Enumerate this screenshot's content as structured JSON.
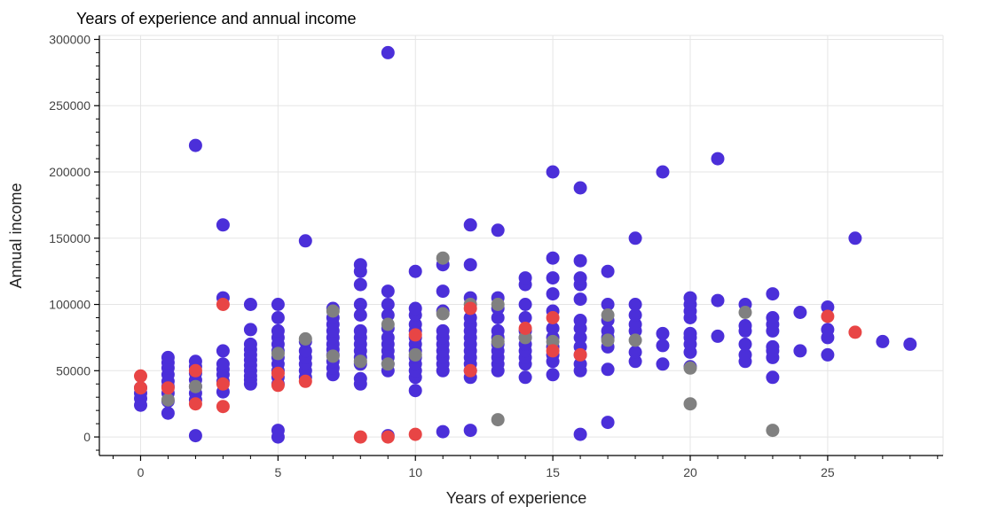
{
  "chart_data": {
    "type": "scatter",
    "title": "Years of experience and annual income",
    "xlabel": "Years of experience",
    "ylabel": "Annual income",
    "xlim": [
      -1.5,
      29.2
    ],
    "ylim": [
      -14000,
      303000
    ],
    "x_ticks": [
      0,
      5,
      10,
      15,
      20,
      25
    ],
    "y_ticks": [
      0,
      50000,
      100000,
      150000,
      200000,
      250000,
      300000
    ],
    "grid": true,
    "legend": "none",
    "series": [
      {
        "color": "#4b2fd9",
        "points": [
          [
            0,
            24000
          ],
          [
            0,
            29000
          ],
          [
            0,
            33000
          ],
          [
            0,
            37000
          ],
          [
            1,
            18000
          ],
          [
            1,
            27000
          ],
          [
            1,
            33000
          ],
          [
            1,
            38000
          ],
          [
            1,
            42000
          ],
          [
            1,
            47000
          ],
          [
            1,
            52000
          ],
          [
            1,
            56000
          ],
          [
            1,
            60000
          ],
          [
            2,
            1000
          ],
          [
            2,
            28000
          ],
          [
            2,
            33000
          ],
          [
            2,
            38000
          ],
          [
            2,
            43000
          ],
          [
            2,
            48000
          ],
          [
            2,
            53000
          ],
          [
            2,
            57000
          ],
          [
            2,
            220000
          ],
          [
            3,
            34000
          ],
          [
            3,
            42000
          ],
          [
            3,
            47000
          ],
          [
            3,
            51000
          ],
          [
            3,
            55000
          ],
          [
            3,
            65000
          ],
          [
            3,
            105000
          ],
          [
            3,
            160000
          ],
          [
            4,
            40000
          ],
          [
            4,
            43000
          ],
          [
            4,
            46000
          ],
          [
            4,
            50000
          ],
          [
            4,
            54000
          ],
          [
            4,
            58000
          ],
          [
            4,
            62000
          ],
          [
            4,
            66000
          ],
          [
            4,
            70000
          ],
          [
            4,
            81000
          ],
          [
            4,
            100000
          ],
          [
            5,
            0
          ],
          [
            5,
            5000
          ],
          [
            5,
            40000
          ],
          [
            5,
            45000
          ],
          [
            5,
            50000
          ],
          [
            5,
            55000
          ],
          [
            5,
            60000
          ],
          [
            5,
            65000
          ],
          [
            5,
            70000
          ],
          [
            5,
            75000
          ],
          [
            5,
            80000
          ],
          [
            5,
            90000
          ],
          [
            5,
            100000
          ],
          [
            6,
            45000
          ],
          [
            6,
            50000
          ],
          [
            6,
            55000
          ],
          [
            6,
            60000
          ],
          [
            6,
            65000
          ],
          [
            6,
            72000
          ],
          [
            6,
            148000
          ],
          [
            7,
            47000
          ],
          [
            7,
            52000
          ],
          [
            7,
            57000
          ],
          [
            7,
            62000
          ],
          [
            7,
            66000
          ],
          [
            7,
            70000
          ],
          [
            7,
            75000
          ],
          [
            7,
            80000
          ],
          [
            7,
            85000
          ],
          [
            7,
            90000
          ],
          [
            7,
            97000
          ],
          [
            8,
            40000
          ],
          [
            8,
            44000
          ],
          [
            8,
            55000
          ],
          [
            8,
            60000
          ],
          [
            8,
            65000
          ],
          [
            8,
            70000
          ],
          [
            8,
            75000
          ],
          [
            8,
            80000
          ],
          [
            8,
            92000
          ],
          [
            8,
            100000
          ],
          [
            8,
            115000
          ],
          [
            8,
            125000
          ],
          [
            8,
            130000
          ],
          [
            9,
            1000
          ],
          [
            9,
            50000
          ],
          [
            9,
            55000
          ],
          [
            9,
            60000
          ],
          [
            9,
            65000
          ],
          [
            9,
            70000
          ],
          [
            9,
            75000
          ],
          [
            9,
            82000
          ],
          [
            9,
            92000
          ],
          [
            9,
            100000
          ],
          [
            9,
            110000
          ],
          [
            9,
            290000
          ],
          [
            10,
            35000
          ],
          [
            10,
            45000
          ],
          [
            10,
            50000
          ],
          [
            10,
            55000
          ],
          [
            10,
            60000
          ],
          [
            10,
            65000
          ],
          [
            10,
            70000
          ],
          [
            10,
            75000
          ],
          [
            10,
            80000
          ],
          [
            10,
            85000
          ],
          [
            10,
            92000
          ],
          [
            10,
            97000
          ],
          [
            10,
            125000
          ],
          [
            11,
            4000
          ],
          [
            11,
            50000
          ],
          [
            11,
            55000
          ],
          [
            11,
            60000
          ],
          [
            11,
            65000
          ],
          [
            11,
            70000
          ],
          [
            11,
            75000
          ],
          [
            11,
            80000
          ],
          [
            11,
            95000
          ],
          [
            11,
            110000
          ],
          [
            11,
            130000
          ],
          [
            12,
            5000
          ],
          [
            12,
            45000
          ],
          [
            12,
            50000
          ],
          [
            12,
            55000
          ],
          [
            12,
            60000
          ],
          [
            12,
            65000
          ],
          [
            12,
            70000
          ],
          [
            12,
            75000
          ],
          [
            12,
            80000
          ],
          [
            12,
            85000
          ],
          [
            12,
            90000
          ],
          [
            12,
            105000
          ],
          [
            12,
            130000
          ],
          [
            12,
            160000
          ],
          [
            13,
            50000
          ],
          [
            13,
            55000
          ],
          [
            13,
            60000
          ],
          [
            13,
            65000
          ],
          [
            13,
            70000
          ],
          [
            13,
            75000
          ],
          [
            13,
            80000
          ],
          [
            13,
            90000
          ],
          [
            13,
            97000
          ],
          [
            13,
            105000
          ],
          [
            13,
            156000
          ],
          [
            14,
            45000
          ],
          [
            14,
            55000
          ],
          [
            14,
            60000
          ],
          [
            14,
            65000
          ],
          [
            14,
            70000
          ],
          [
            14,
            75000
          ],
          [
            14,
            80000
          ],
          [
            14,
            90000
          ],
          [
            14,
            100000
          ],
          [
            14,
            115000
          ],
          [
            14,
            120000
          ],
          [
            15,
            47000
          ],
          [
            15,
            57000
          ],
          [
            15,
            62000
          ],
          [
            15,
            68000
          ],
          [
            15,
            75000
          ],
          [
            15,
            82000
          ],
          [
            15,
            95000
          ],
          [
            15,
            108000
          ],
          [
            15,
            120000
          ],
          [
            15,
            135000
          ],
          [
            15,
            200000
          ],
          [
            16,
            2000
          ],
          [
            16,
            50000
          ],
          [
            16,
            55000
          ],
          [
            16,
            62000
          ],
          [
            16,
            68000
          ],
          [
            16,
            75000
          ],
          [
            16,
            82000
          ],
          [
            16,
            88000
          ],
          [
            16,
            104000
          ],
          [
            16,
            115000
          ],
          [
            16,
            120000
          ],
          [
            16,
            133000
          ],
          [
            16,
            188000
          ],
          [
            17,
            11000
          ],
          [
            17,
            51000
          ],
          [
            17,
            68000
          ],
          [
            17,
            75000
          ],
          [
            17,
            80000
          ],
          [
            17,
            88000
          ],
          [
            17,
            100000
          ],
          [
            17,
            125000
          ],
          [
            18,
            57000
          ],
          [
            18,
            64000
          ],
          [
            18,
            80000
          ],
          [
            18,
            85000
          ],
          [
            18,
            92000
          ],
          [
            18,
            100000
          ],
          [
            18,
            150000
          ],
          [
            19,
            55000
          ],
          [
            19,
            69000
          ],
          [
            19,
            78000
          ],
          [
            19,
            200000
          ],
          [
            20,
            53000
          ],
          [
            20,
            64000
          ],
          [
            20,
            70000
          ],
          [
            20,
            75000
          ],
          [
            20,
            78000
          ],
          [
            20,
            90000
          ],
          [
            20,
            95000
          ],
          [
            20,
            100000
          ],
          [
            20,
            105000
          ],
          [
            21,
            76000
          ],
          [
            21,
            103000
          ],
          [
            21,
            210000
          ],
          [
            22,
            57000
          ],
          [
            22,
            62000
          ],
          [
            22,
            70000
          ],
          [
            22,
            80000
          ],
          [
            22,
            84000
          ],
          [
            22,
            100000
          ],
          [
            23,
            45000
          ],
          [
            23,
            60000
          ],
          [
            23,
            65000
          ],
          [
            23,
            68000
          ],
          [
            23,
            80000
          ],
          [
            23,
            85000
          ],
          [
            23,
            90000
          ],
          [
            23,
            108000
          ],
          [
            24,
            65000
          ],
          [
            24,
            94000
          ],
          [
            25,
            62000
          ],
          [
            25,
            75000
          ],
          [
            25,
            81000
          ],
          [
            25,
            98000
          ],
          [
            26,
            150000
          ],
          [
            27,
            72000
          ],
          [
            28,
            70000
          ]
        ]
      },
      {
        "color": "#808080",
        "points": [
          [
            1,
            28000
          ],
          [
            2,
            38000
          ],
          [
            5,
            63000
          ],
          [
            6,
            74000
          ],
          [
            7,
            61000
          ],
          [
            7,
            95000
          ],
          [
            8,
            57000
          ],
          [
            9,
            55000
          ],
          [
            9,
            85000
          ],
          [
            10,
            62000
          ],
          [
            11,
            93000
          ],
          [
            11,
            135000
          ],
          [
            12,
            100000
          ],
          [
            13,
            13000
          ],
          [
            13,
            72000
          ],
          [
            13,
            100000
          ],
          [
            14,
            75000
          ],
          [
            15,
            72000
          ],
          [
            17,
            73000
          ],
          [
            17,
            92000
          ],
          [
            18,
            73000
          ],
          [
            20,
            25000
          ],
          [
            20,
            52000
          ],
          [
            22,
            94000
          ],
          [
            23,
            5000
          ]
        ]
      },
      {
        "color": "#e84545",
        "points": [
          [
            0,
            46000
          ],
          [
            0,
            37000
          ],
          [
            1,
            37000
          ],
          [
            2,
            25000
          ],
          [
            2,
            50000
          ],
          [
            3,
            23000
          ],
          [
            3,
            40000
          ],
          [
            3,
            100000
          ],
          [
            5,
            39000
          ],
          [
            5,
            48000
          ],
          [
            6,
            42000
          ],
          [
            8,
            0
          ],
          [
            9,
            0
          ],
          [
            10,
            2000
          ],
          [
            10,
            77000
          ],
          [
            12,
            50000
          ],
          [
            12,
            97000
          ],
          [
            14,
            82000
          ],
          [
            15,
            65000
          ],
          [
            15,
            90000
          ],
          [
            16,
            62000
          ],
          [
            25,
            91000
          ],
          [
            26,
            79000
          ]
        ]
      }
    ]
  }
}
